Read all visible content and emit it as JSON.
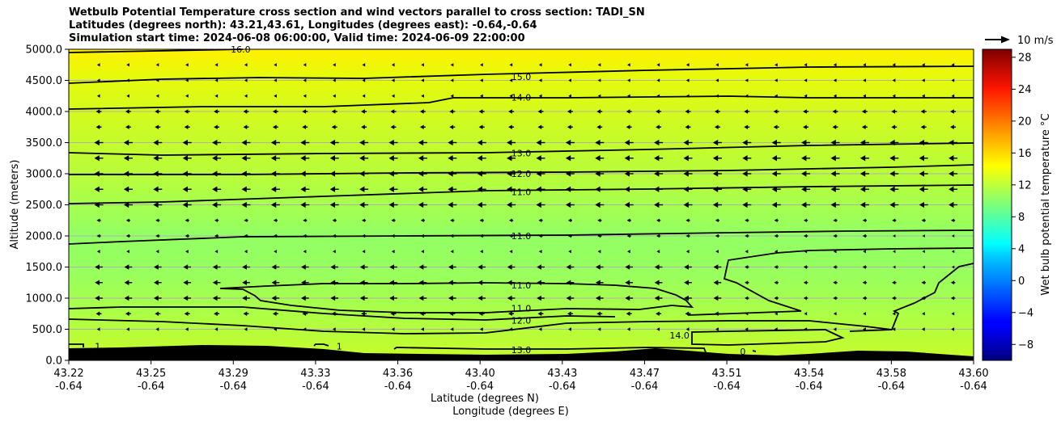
{
  "chart_data": {
    "type": "contour",
    "title_lines": [
      "Wetbulb Potential Temperature cross section and wind vectors parallel to cross section: TADI_SN",
      "Latitudes (degrees north): 43.21,43.61, Longitudes (degrees east): -0.64,-0.64",
      "Simulation start time: 2024-06-08 06:00:00, Valid time: 2024-06-09 22:00:00"
    ],
    "ylabel": "Altitude (meters)",
    "xlabel_lat": "Latitude (degrees N)",
    "xlabel_lon": "Longitude (degrees E)",
    "ylim": [
      0,
      5000
    ],
    "y_ticks": [
      "0.0",
      "500.0",
      "1000.0",
      "1500.0",
      "2000.0",
      "2500.0",
      "3000.0",
      "3500.0",
      "4000.0",
      "4500.0",
      "5000.0"
    ],
    "x_ticks": [
      {
        "lat": "43.22",
        "lon": "-0.64"
      },
      {
        "lat": "43.25",
        "lon": "-0.64"
      },
      {
        "lat": "43.29",
        "lon": "-0.64"
      },
      {
        "lat": "43.33",
        "lon": "-0.64"
      },
      {
        "lat": "43.36",
        "lon": "-0.64"
      },
      {
        "lat": "43.40",
        "lon": "-0.64"
      },
      {
        "lat": "43.43",
        "lon": "-0.64"
      },
      {
        "lat": "43.47",
        "lon": "-0.64"
      },
      {
        "lat": "43.51",
        "lon": "-0.64"
      },
      {
        "lat": "43.54",
        "lon": "-0.64"
      },
      {
        "lat": "43.58",
        "lon": "-0.64"
      },
      {
        "lat": "43.60",
        "lon": "-0.64"
      }
    ],
    "colorbar": {
      "label": "Wet bulb potential temperature $^\\circ$C",
      "label_display": "Wet bulb potential temperature °C",
      "range": [
        -10,
        29
      ],
      "ticks": [
        "−8",
        "−4",
        "0",
        "4",
        "8",
        "12",
        "16",
        "20",
        "24",
        "28"
      ]
    },
    "wind_key_label": "10 m/s",
    "contour_labels": [
      {
        "text": "16.0",
        "x": 0.19,
        "alt": 5000
      },
      {
        "text": "15.0",
        "x": 0.5,
        "alt": 4560
      },
      {
        "text": "14.0",
        "x": 0.5,
        "alt": 4230
      },
      {
        "text": "13.0",
        "x": 0.5,
        "alt": 3330
      },
      {
        "text": "12.0",
        "x": 0.5,
        "alt": 3000
      },
      {
        "text": "11.0",
        "x": 0.5,
        "alt": 2710
      },
      {
        "text": "11.0",
        "x": 0.5,
        "alt": 2000
      },
      {
        "text": "11.0",
        "x": 0.5,
        "alt": 1210
      },
      {
        "text": "11.0",
        "x": 0.5,
        "alt": 840
      },
      {
        "text": "12.0",
        "x": 0.5,
        "alt": 640
      },
      {
        "text": "13.0",
        "x": 0.5,
        "alt": 170
      },
      {
        "text": "14.0",
        "x": 0.675,
        "alt": 400
      },
      {
        "text": "1",
        "x": 0.032,
        "alt": 230
      },
      {
        "text": "1",
        "x": 0.299,
        "alt": 230
      },
      {
        "text": "0",
        "x": 0.745,
        "alt": 140
      }
    ]
  }
}
